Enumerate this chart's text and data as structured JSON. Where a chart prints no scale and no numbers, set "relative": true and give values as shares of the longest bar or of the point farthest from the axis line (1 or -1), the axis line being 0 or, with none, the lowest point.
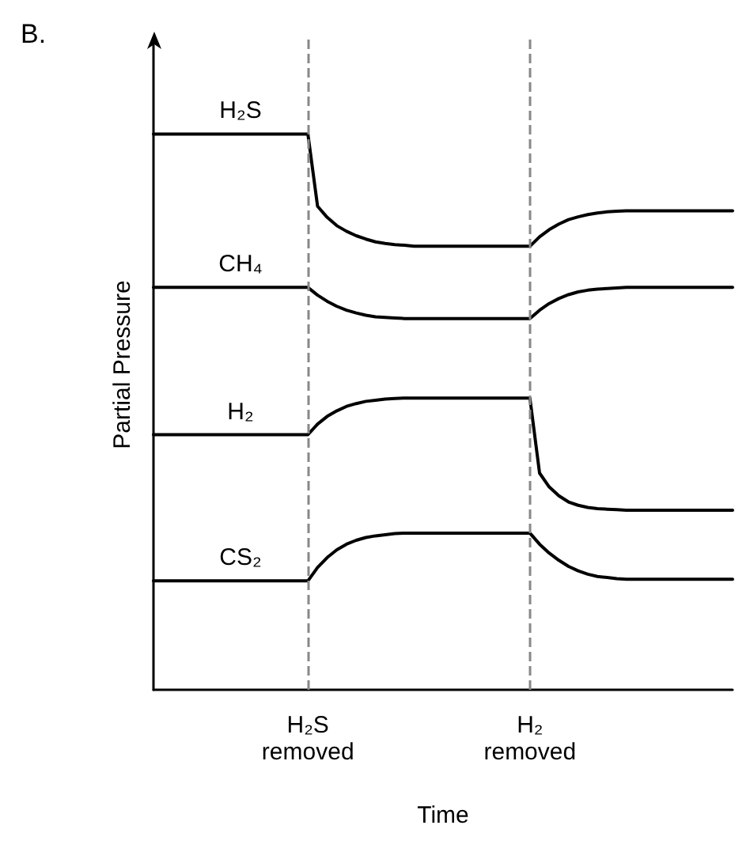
{
  "chart_data": {
    "type": "line",
    "title": "B.",
    "xlabel": "Time",
    "ylabel": "Partial Pressure",
    "relative": true,
    "grid": false,
    "legend": false,
    "marker": "none",
    "line_style": "solid",
    "categories": [
      null,
      null,
      null,
      null,
      null,
      null,
      null,
      null,
      null,
      null,
      null,
      null,
      null,
      null,
      null,
      null,
      "H₂S removed",
      null,
      null,
      null,
      null,
      null,
      null,
      null,
      null,
      null,
      null,
      null,
      null,
      null,
      null,
      null,
      null,
      null,
      null,
      null,
      null,
      null,
      null,
      "H₂ removed",
      null,
      null,
      null,
      null,
      null,
      null,
      null,
      null,
      null,
      null,
      null,
      null,
      null,
      null,
      null,
      null,
      null,
      null,
      null,
      null,
      null
    ],
    "series": [
      {
        "name": "H₂S",
        "color": "#000000",
        "values": [
          1.0,
          1.0,
          1.0,
          1.0,
          1.0,
          1.0,
          1.0,
          1.0,
          1.0,
          1.0,
          1.0,
          1.0,
          1.0,
          1.0,
          1.0,
          1.0,
          1.0,
          0.87,
          0.85,
          0.835,
          0.825,
          0.817,
          0.811,
          0.806,
          0.803,
          0.801,
          0.8,
          0.798,
          0.798,
          0.798,
          0.798,
          0.798,
          0.798,
          0.798,
          0.798,
          0.798,
          0.798,
          0.798,
          0.798,
          0.798,
          0.815,
          0.828,
          0.838,
          0.846,
          0.851,
          0.855,
          0.858,
          0.86,
          0.861,
          0.862,
          0.862,
          0.862,
          0.862,
          0.862,
          0.862,
          0.862,
          0.862,
          0.862,
          0.862,
          0.862,
          0.862
        ]
      },
      {
        "name": "CH₄",
        "color": "#000000",
        "values": [
          0.724,
          0.724,
          0.724,
          0.724,
          0.724,
          0.724,
          0.724,
          0.724,
          0.724,
          0.724,
          0.724,
          0.724,
          0.724,
          0.724,
          0.724,
          0.724,
          0.724,
          0.71,
          0.699,
          0.69,
          0.683,
          0.678,
          0.674,
          0.671,
          0.67,
          0.669,
          0.668,
          0.668,
          0.668,
          0.668,
          0.668,
          0.668,
          0.668,
          0.668,
          0.668,
          0.668,
          0.668,
          0.668,
          0.668,
          0.668,
          0.683,
          0.695,
          0.704,
          0.711,
          0.716,
          0.719,
          0.721,
          0.722,
          0.723,
          0.724,
          0.724,
          0.724,
          0.724,
          0.724,
          0.724,
          0.724,
          0.724,
          0.724,
          0.724,
          0.724,
          0.724
        ]
      },
      {
        "name": "H₂",
        "color": "#000000",
        "values": [
          0.459,
          0.459,
          0.459,
          0.459,
          0.459,
          0.459,
          0.459,
          0.459,
          0.459,
          0.459,
          0.459,
          0.459,
          0.459,
          0.459,
          0.459,
          0.459,
          0.459,
          0.478,
          0.492,
          0.502,
          0.51,
          0.515,
          0.519,
          0.521,
          0.523,
          0.524,
          0.525,
          0.525,
          0.525,
          0.525,
          0.525,
          0.525,
          0.525,
          0.525,
          0.525,
          0.525,
          0.525,
          0.525,
          0.525,
          0.525,
          0.39,
          0.365,
          0.349,
          0.338,
          0.332,
          0.328,
          0.326,
          0.325,
          0.324,
          0.323,
          0.323,
          0.323,
          0.323,
          0.323,
          0.323,
          0.323,
          0.323,
          0.323,
          0.323,
          0.323,
          0.323
        ]
      },
      {
        "name": "CS₂",
        "color": "#000000",
        "values": [
          0.196,
          0.196,
          0.196,
          0.196,
          0.196,
          0.196,
          0.196,
          0.196,
          0.196,
          0.196,
          0.196,
          0.196,
          0.196,
          0.196,
          0.196,
          0.196,
          0.196,
          0.22,
          0.238,
          0.252,
          0.262,
          0.269,
          0.274,
          0.277,
          0.279,
          0.281,
          0.282,
          0.282,
          0.282,
          0.282,
          0.282,
          0.282,
          0.282,
          0.282,
          0.282,
          0.282,
          0.282,
          0.282,
          0.282,
          0.282,
          0.262,
          0.246,
          0.233,
          0.222,
          0.214,
          0.208,
          0.204,
          0.202,
          0.2,
          0.199,
          0.199,
          0.199,
          0.199,
          0.199,
          0.199,
          0.199,
          0.199,
          0.199,
          0.199,
          0.199,
          0.199
        ]
      }
    ],
    "ref_lines": [
      {
        "axis": "x",
        "value": "H₂S removed",
        "color": "#888888",
        "line_style": "dashed"
      },
      {
        "axis": "x",
        "value": "H₂ removed",
        "color": "#888888",
        "line_style": "dashed"
      }
    ]
  }
}
